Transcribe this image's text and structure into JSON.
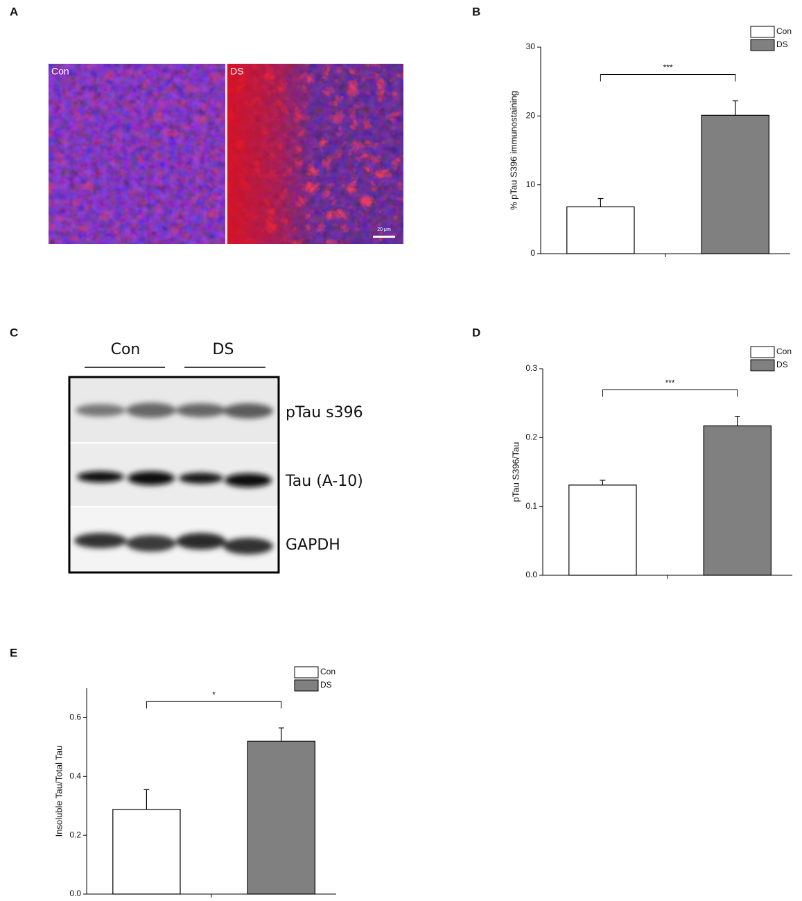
{
  "panel_labels": [
    "A",
    "B",
    "C",
    "D",
    "E"
  ],
  "image_a": {
    "labels": [
      "Con",
      "DS"
    ],
    "scale_bar": "20 μm"
  },
  "blot_c": {
    "groups": [
      "Con",
      "DS"
    ],
    "bands": [
      "pTau s396",
      "Tau (A-10)",
      "GAPDH"
    ]
  },
  "chart_data": [
    {
      "type": "bar",
      "ylabel": "% pTau S396 immunostaining",
      "annotation": "***",
      "series": [
        {
          "name": "Con",
          "color": "#ffffff",
          "values": [
            6.8
          ],
          "errors": [
            1.2
          ]
        },
        {
          "name": "DS",
          "color": "#808080",
          "values": [
            20.1
          ],
          "errors": [
            2.1
          ]
        }
      ],
      "ylim": [
        0,
        30
      ],
      "yticks": [
        0,
        10,
        20,
        30
      ]
    },
    {
      "type": "bar",
      "ylabel": "pTau S396/Tau",
      "annotation": "***",
      "series": [
        {
          "name": "Con",
          "color": "#ffffff",
          "values": [
            0.131
          ],
          "errors": [
            0.007
          ]
        },
        {
          "name": "DS",
          "color": "#808080",
          "values": [
            0.217
          ],
          "errors": [
            0.014
          ]
        }
      ],
      "ylim": [
        0,
        0.3
      ],
      "yticks": [
        {
          "value": 0,
          "label": "0.0"
        },
        0.1,
        0.2,
        0.3
      ]
    },
    {
      "type": "bar",
      "ylabel": "Insoluble Tau/Total Tau",
      "annotation": "*",
      "series": [
        {
          "name": "Con",
          "color": "#ffffff",
          "values": [
            0.288
          ],
          "errors": [
            0.067
          ]
        },
        {
          "name": "DS",
          "color": "#808080",
          "values": [
            0.52
          ],
          "errors": [
            0.045
          ]
        }
      ],
      "ylim": [
        0,
        0.7
      ],
      "yticks": [
        {
          "value": 0,
          "label": "0.0"
        },
        0.2,
        0.4,
        0.6
      ]
    }
  ]
}
